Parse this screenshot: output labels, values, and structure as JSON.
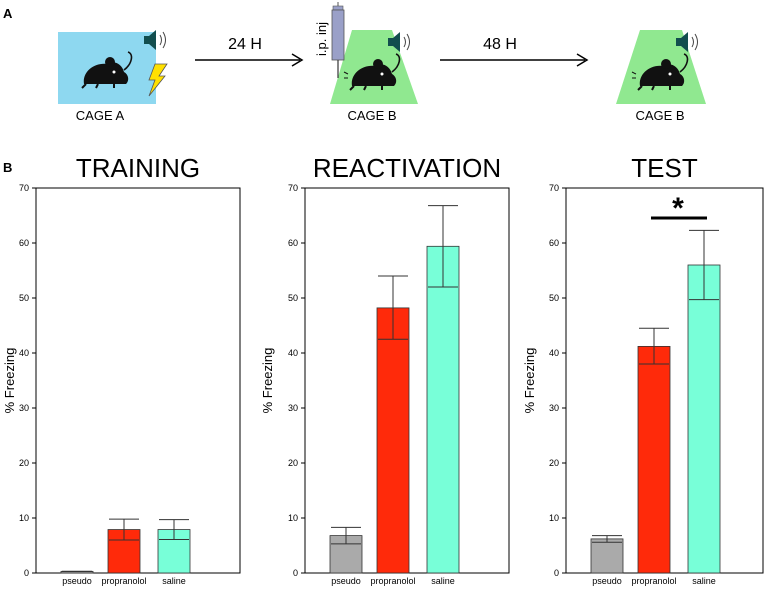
{
  "panel_a": {
    "label": "A",
    "cages": [
      {
        "name": "CAGE A",
        "color": "#8ed8f0"
      },
      {
        "name": "CAGE B",
        "color": "#90e890"
      },
      {
        "name": "CAGE B",
        "color": "#90e890"
      }
    ],
    "arrows": [
      "24 H",
      "48 H"
    ],
    "injection_label": "i.p. inj",
    "icons": [
      "mouse-icon",
      "speaker-icon",
      "lightning-icon",
      "syringe-icon"
    ]
  },
  "panel_b": {
    "label": "B"
  },
  "colors": {
    "pseudo": "#aaaaaa",
    "propranolol": "#ff2a0a",
    "saline": "#78ffd8"
  },
  "chart_data": [
    {
      "type": "bar",
      "title": "TRAINING",
      "ylabel": "% Freezing",
      "xlabel": "",
      "ylim": [
        0,
        70
      ],
      "yticks": [
        "0",
        "10",
        "20",
        "30",
        "40",
        "50",
        "60",
        "70"
      ],
      "categories": [
        "pseudo",
        "propranolol",
        "saline"
      ],
      "values": [
        0.3,
        7.9,
        7.9
      ],
      "err_low": [
        0.3,
        6.0,
        6.1
      ],
      "err_high": [
        0.3,
        9.8,
        9.7
      ]
    },
    {
      "type": "bar",
      "title": "REACTIVATION",
      "ylabel": "% Freezing",
      "xlabel": "",
      "ylim": [
        0,
        70
      ],
      "yticks": [
        "0",
        "10",
        "20",
        "30",
        "40",
        "50",
        "60",
        "70"
      ],
      "categories": [
        "pseudo",
        "propranolol",
        "saline"
      ],
      "values": [
        6.8,
        48.2,
        59.4
      ],
      "err_low": [
        5.3,
        42.5,
        52.0
      ],
      "err_high": [
        8.3,
        54.0,
        66.8
      ]
    },
    {
      "type": "bar",
      "title": "TEST",
      "ylabel": "% Freezing",
      "xlabel": "",
      "ylim": [
        0,
        70
      ],
      "yticks": [
        "0",
        "10",
        "20",
        "30",
        "40",
        "50",
        "60",
        "70"
      ],
      "categories": [
        "pseudo",
        "propranolol",
        "saline"
      ],
      "values": [
        6.2,
        41.2,
        56.0
      ],
      "err_low": [
        5.6,
        38.0,
        49.7
      ],
      "err_high": [
        6.8,
        44.5,
        62.3
      ],
      "annotation": {
        "text": "*",
        "between": [
          "propranolol",
          "saline"
        ]
      }
    }
  ]
}
